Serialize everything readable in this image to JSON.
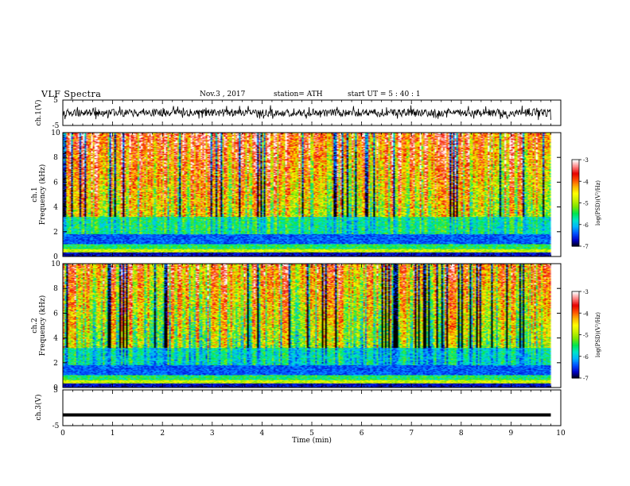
{
  "header": {
    "title": "VLF  Spectra",
    "date": "Nov.3  , 2017",
    "station": "station= ATH",
    "start_ut": "start  UT  =    5  : 40 : 1"
  },
  "chart_data": [
    {
      "type": "line",
      "name": "ch1-waveform",
      "ylabel": "ch.1(V)",
      "ylim": [
        -5,
        5
      ],
      "yticks": [
        "5",
        "-5"
      ],
      "x_range_min": [
        0,
        9.8
      ],
      "amplitude_range_V": [
        -3,
        3
      ]
    },
    {
      "type": "heatmap",
      "name": "ch1-spectrogram",
      "ylabel": "ch.1\nFrequency  (kHz)",
      "ylabel_lines": [
        "ch.1",
        "Frequency  (kHz)"
      ],
      "ylim": [
        0,
        10
      ],
      "yticks": [
        "0",
        "2",
        "4",
        "6",
        "8",
        "10"
      ],
      "x_range_min": [
        0,
        9.8
      ],
      "colorbar": {
        "label": "log(PSD)(V²/Hz)",
        "range": [
          -7,
          -3
        ],
        "ticks": [
          "-3",
          "-4",
          "-5",
          "-6",
          "-7"
        ]
      }
    },
    {
      "type": "heatmap",
      "name": "ch2-spectrogram",
      "ylabel_lines": [
        "ch.2",
        "Frequency  (kHz)"
      ],
      "ylim": [
        0,
        10
      ],
      "yticks": [
        "0",
        "2",
        "4",
        "6",
        "8",
        "10"
      ],
      "x_range_min": [
        0,
        9.8
      ],
      "colorbar": {
        "label": "log(PSD)(V²/Hz)",
        "range": [
          -7,
          -3
        ],
        "ticks": [
          "-3",
          "-4",
          "-5",
          "-6",
          "-7"
        ]
      }
    },
    {
      "type": "line",
      "name": "ch3-waveform",
      "ylabel": "ch.3(V)",
      "ylim": [
        -5,
        5
      ],
      "yticks": [
        "5",
        "-5"
      ],
      "x_range_min": [
        0,
        9.8
      ],
      "constant_value_V": -2
    }
  ],
  "xaxis": {
    "label": "Time  (min)",
    "range": [
      0,
      10
    ],
    "ticks": [
      "0",
      "1",
      "2",
      "3",
      "4",
      "5",
      "6",
      "7",
      "8",
      "9",
      "10"
    ]
  },
  "colors": {
    "colormap": [
      "#000000",
      "#0000c8",
      "#0050ff",
      "#00b4ff",
      "#00e6c8",
      "#00e650",
      "#7ae600",
      "#c8f000",
      "#ffff00",
      "#ffb400",
      "#ff5000",
      "#e60000",
      "#ff8080",
      "#ffffff"
    ]
  }
}
